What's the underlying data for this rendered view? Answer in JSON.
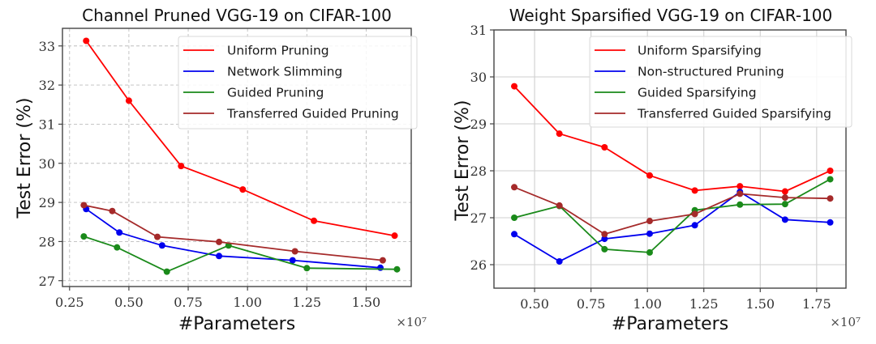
{
  "chart_data": [
    {
      "type": "line",
      "title": "Channel Pruned VGG-19 on CIFAR-100",
      "xlabel": "#Parameters",
      "ylabel": "Test Error (%)",
      "x_multiplier": "×10⁷",
      "xlim": [
        0.22,
        1.69
      ],
      "ylim": [
        26.85,
        33.45
      ],
      "xticks": [
        0.25,
        0.5,
        0.75,
        1.0,
        1.25,
        1.5
      ],
      "xtick_labels": [
        "0.25",
        "0.50",
        "0.75",
        "1.00",
        "1.25",
        "1.50"
      ],
      "yticks": [
        27,
        28,
        29,
        30,
        31,
        32,
        33
      ],
      "ytick_labels": [
        "27",
        "28",
        "29",
        "30",
        "31",
        "32",
        "33"
      ],
      "grid": "dashed",
      "legend_position": "top-right",
      "series": [
        {
          "name": "Uniform Pruning",
          "color": "#ff0000",
          "x": [
            0.32,
            0.5,
            0.72,
            0.98,
            1.28,
            1.62
          ],
          "y": [
            33.13,
            31.6,
            29.93,
            29.33,
            28.53,
            28.15
          ]
        },
        {
          "name": "Network Slimming",
          "color": "#0000ee",
          "x": [
            0.32,
            0.46,
            0.64,
            0.88,
            1.19,
            1.56
          ],
          "y": [
            28.83,
            28.23,
            27.9,
            27.63,
            27.52,
            27.33
          ]
        },
        {
          "name": "Guided Pruning",
          "color": "#1a8a1a",
          "x": [
            0.31,
            0.45,
            0.66,
            0.92,
            1.25,
            1.63
          ],
          "y": [
            28.13,
            27.85,
            27.23,
            27.9,
            27.32,
            27.29
          ]
        },
        {
          "name": "Transferred Guided Pruning",
          "color": "#a52a2a",
          "x": [
            0.31,
            0.43,
            0.62,
            0.88,
            1.2,
            1.57
          ],
          "y": [
            28.93,
            28.78,
            28.12,
            27.99,
            27.75,
            27.52
          ]
        }
      ]
    },
    {
      "type": "line",
      "title": "Weight Sparsified VGG-19 on CIFAR-100",
      "xlabel": "#Parameters",
      "ylabel": "Test Error (%)",
      "x_multiplier": "×10⁷",
      "xlim": [
        0.32,
        1.88
      ],
      "ylim": [
        25.5,
        31.0
      ],
      "xticks": [
        0.5,
        0.75,
        1.0,
        1.25,
        1.5,
        1.75
      ],
      "xtick_labels": [
        "0.50",
        "0.75",
        "1.00",
        "1.25",
        "1.50",
        "1.75"
      ],
      "yticks": [
        26,
        27,
        28,
        29,
        30,
        31
      ],
      "ytick_labels": [
        "26",
        "27",
        "28",
        "29",
        "30",
        "31"
      ],
      "grid": "solid",
      "legend_position": "top-right",
      "series": [
        {
          "name": "Uniform Sparsifying",
          "color": "#ff0000",
          "x": [
            0.41,
            0.61,
            0.81,
            1.01,
            1.21,
            1.41,
            1.61,
            1.81
          ],
          "y": [
            29.8,
            28.79,
            28.5,
            27.9,
            27.58,
            27.67,
            27.56,
            28.0
          ]
        },
        {
          "name": "Non-structured Pruning",
          "color": "#0000ee",
          "x": [
            0.41,
            0.61,
            0.81,
            1.01,
            1.21,
            1.41,
            1.61,
            1.81
          ],
          "y": [
            26.65,
            26.07,
            26.55,
            26.66,
            26.84,
            27.55,
            26.96,
            26.9
          ]
        },
        {
          "name": "Guided Sparsifying",
          "color": "#1a8a1a",
          "x": [
            0.41,
            0.61,
            0.81,
            1.01,
            1.21,
            1.41,
            1.61,
            1.81
          ],
          "y": [
            27.0,
            27.25,
            26.33,
            26.26,
            27.16,
            27.28,
            27.29,
            27.82
          ]
        },
        {
          "name": "Transferred Guided Sparsifying",
          "color": "#a52a2a",
          "x": [
            0.41,
            0.61,
            0.81,
            1.01,
            1.21,
            1.41,
            1.61,
            1.81
          ],
          "y": [
            27.65,
            27.26,
            26.65,
            26.93,
            27.08,
            27.51,
            27.43,
            27.41
          ]
        }
      ]
    }
  ]
}
